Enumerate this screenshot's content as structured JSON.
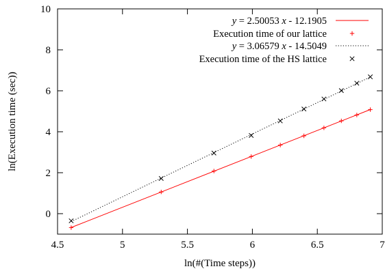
{
  "chart_data": {
    "type": "scatter",
    "xlabel": "ln(#(Time steps))",
    "ylabel": "ln(Execution time (sec))",
    "xlim": [
      4.5,
      7
    ],
    "ylim": [
      -1,
      10
    ],
    "xticks": [
      "4.5",
      "5",
      "5.5",
      "6",
      "6.5",
      "7"
    ],
    "yticks": [
      "0",
      "2",
      "4",
      "6",
      "8",
      "10"
    ],
    "grid": false,
    "legend_position": "top-right",
    "series": [
      {
        "name": "y = 2.50053 x - 12.1905",
        "kind": "line",
        "color": "#ff0000",
        "dash": "solid",
        "slope": 2.50053,
        "intercept": -12.1905,
        "x_range": [
          4.605,
          6.908
        ]
      },
      {
        "name": "Execution time of our lattice",
        "kind": "points",
        "marker": "+",
        "color": "#ff0000",
        "x": [
          4.605,
          5.298,
          5.704,
          5.991,
          6.215,
          6.397,
          6.551,
          6.685,
          6.804,
          6.908
        ],
        "y": [
          -0.68,
          1.06,
          2.08,
          2.79,
          3.35,
          3.8,
          4.19,
          4.53,
          4.82,
          5.08
        ]
      },
      {
        "name": "y = 3.06579 x - 14.5049",
        "kind": "line",
        "color": "#000000",
        "dash": "dotted",
        "slope": 3.06579,
        "intercept": -14.5049,
        "x_range": [
          4.605,
          6.908
        ]
      },
      {
        "name": "Execution time of the HS lattice",
        "kind": "points",
        "marker": "x",
        "color": "#000000",
        "x": [
          4.605,
          5.298,
          5.704,
          5.991,
          6.215,
          6.397,
          6.551,
          6.685,
          6.804,
          6.908
        ],
        "y": [
          -0.35,
          1.72,
          2.96,
          3.82,
          4.53,
          5.11,
          5.6,
          6.01,
          6.37,
          6.68
        ]
      }
    ]
  }
}
